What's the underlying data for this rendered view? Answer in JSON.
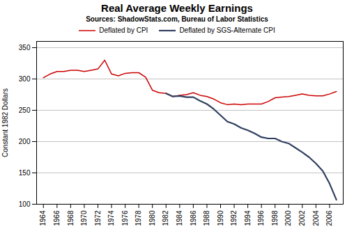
{
  "chart_data": {
    "type": "line",
    "title": "Real Average Weekly Earnings",
    "subtitle": "Sources: ShadowStats.com, Bureau of Labor Statistics",
    "ylabel": "Constant 1982 Dollars",
    "x": [
      1964,
      1965,
      1966,
      1967,
      1968,
      1969,
      1970,
      1971,
      1972,
      1973,
      1974,
      1975,
      1976,
      1977,
      1978,
      1979,
      1980,
      1981,
      1982,
      1983,
      1984,
      1985,
      1986,
      1987,
      1988,
      1989,
      1990,
      1991,
      1992,
      1993,
      1994,
      1995,
      1996,
      1997,
      1998,
      1999,
      2000,
      2001,
      2002,
      2003,
      2004,
      2005,
      2006,
      2007
    ],
    "series": [
      {
        "name": "Deflated by CPI",
        "color": "#cc0000",
        "values": [
          302,
          308,
          312,
          312,
          314,
          314,
          312,
          314,
          316,
          330,
          308,
          305,
          309,
          310,
          310,
          303,
          282,
          278,
          277,
          272,
          274,
          275,
          278,
          274,
          272,
          268,
          262,
          259,
          260,
          259,
          260,
          260,
          260,
          264,
          270,
          271,
          272,
          274,
          276,
          274,
          273,
          273,
          276,
          280
        ]
      },
      {
        "name": "Deflated by SGS-Alternate CPI",
        "color": "#2f3f5f",
        "values": [
          null,
          null,
          null,
          null,
          null,
          null,
          null,
          null,
          null,
          null,
          null,
          null,
          null,
          null,
          null,
          null,
          null,
          null,
          277,
          272,
          273,
          271,
          271,
          265,
          260,
          252,
          242,
          232,
          228,
          222,
          218,
          213,
          207,
          205,
          205,
          200,
          197,
          190,
          183,
          175,
          165,
          153,
          133,
          107
        ]
      }
    ],
    "xlim": [
      1963,
      2008
    ],
    "xticks": [
      1964,
      1966,
      1968,
      1970,
      1972,
      1974,
      1976,
      1978,
      1980,
      1982,
      1984,
      1986,
      1988,
      1990,
      1992,
      1994,
      1996,
      1998,
      2000,
      2002,
      2004,
      2006
    ],
    "ylim": [
      100,
      360
    ],
    "yticks": [
      100,
      150,
      200,
      250,
      300,
      350
    ],
    "grid": true,
    "legend": "top"
  }
}
